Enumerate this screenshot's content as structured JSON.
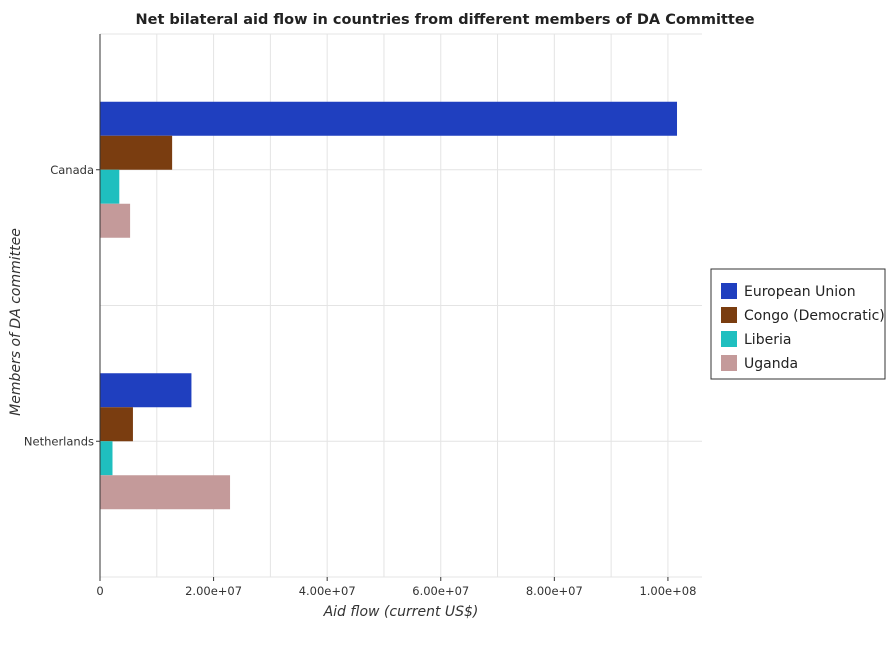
{
  "chart_data": {
    "type": "bar",
    "orientation": "horizontal",
    "title": "Net bilateral aid flow in countries from different members of DA Committee",
    "xlabel": "Aid flow (current US$)",
    "ylabel": "Members of DA committee",
    "categories": [
      "Canada",
      "Netherlands"
    ],
    "series": [
      {
        "name": "European Union",
        "color": "#1f3fbf",
        "values": [
          101600000,
          16100000
        ]
      },
      {
        "name": "Congo (Democratic)",
        "color": "#7a3d10",
        "values": [
          12700000,
          5800000
        ]
      },
      {
        "name": "Liberia",
        "color": "#1fbfbf",
        "values": [
          3400000,
          2200000
        ]
      },
      {
        "name": "Uganda",
        "color": "#c49a9a",
        "values": [
          5300000,
          22900000
        ]
      }
    ],
    "xlim": [
      0,
      106000000
    ],
    "xticks": [
      0,
      20000000,
      40000000,
      60000000,
      80000000,
      100000000
    ],
    "xtick_labels": [
      "0",
      "2.00e+07",
      "4.00e+07",
      "6.00e+07",
      "8.00e+07",
      "1.00e+08"
    ],
    "grid": true,
    "legend_position": "right"
  }
}
